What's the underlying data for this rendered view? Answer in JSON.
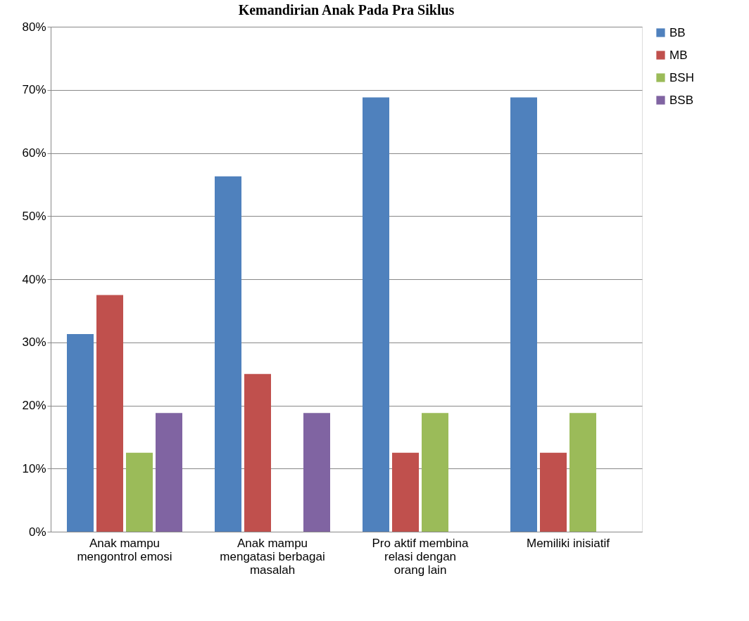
{
  "chart_data": {
    "type": "bar",
    "title": "Kemandirian Anak Pada Pra Siklus",
    "categories": [
      "Anak mampu mengontrol emosi",
      "Anak mampu mengatasi berbagai masalah",
      "Pro aktif membina relasi dengan orang lain",
      "Memiliki inisiatif"
    ],
    "series": [
      {
        "name": "BB",
        "color": "#4f81bd",
        "values": [
          31.3,
          56.3,
          68.8,
          68.8
        ]
      },
      {
        "name": "MB",
        "color": "#c0504d",
        "values": [
          37.5,
          25,
          12.5,
          12.5
        ]
      },
      {
        "name": "BSH",
        "color": "#9bbb59",
        "values": [
          12.5,
          null,
          18.8,
          18.8
        ]
      },
      {
        "name": "BSB",
        "color": "#8064a2",
        "values": [
          18.8,
          18.8,
          null,
          null
        ]
      }
    ],
    "ylim": [
      0,
      80
    ],
    "yticks": [
      {
        "value": 0,
        "label": "0%"
      },
      {
        "value": 10,
        "label": "10%"
      },
      {
        "value": 20,
        "label": "20%"
      },
      {
        "value": 30,
        "label": "30%"
      },
      {
        "value": 40,
        "label": "40%"
      },
      {
        "value": 50,
        "label": "50%"
      },
      {
        "value": 60,
        "label": "60%"
      },
      {
        "value": 70,
        "label": "70%"
      },
      {
        "value": 80,
        "label": "80%"
      }
    ],
    "grid": "y",
    "legend": "right"
  }
}
